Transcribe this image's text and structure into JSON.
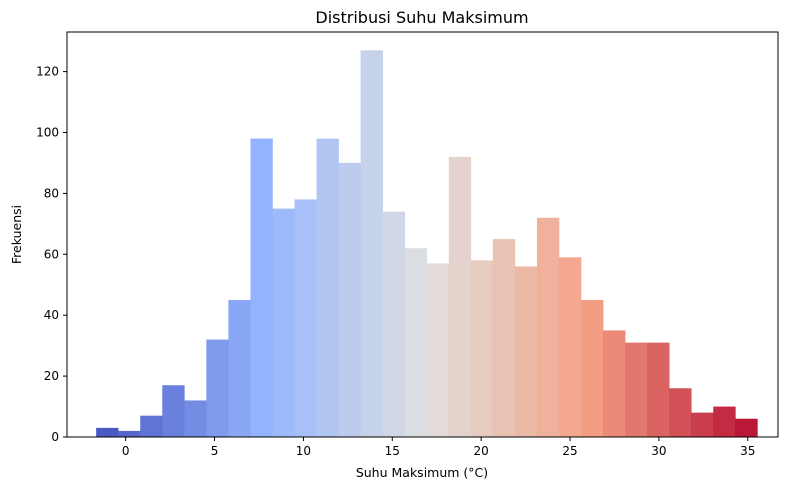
{
  "chart_data": {
    "type": "bar",
    "title": "Distribusi Suhu Maksimum",
    "xlabel": "Suhu Maksimum (°C)",
    "ylabel": "Frekuensi",
    "colormap": "coolwarm",
    "bin_width": 1.24,
    "bins": [
      {
        "x0": -1.66,
        "count": 3
      },
      {
        "x0": -0.42,
        "count": 2
      },
      {
        "x0": 0.82,
        "count": 7
      },
      {
        "x0": 2.06,
        "count": 17
      },
      {
        "x0": 3.3,
        "count": 12
      },
      {
        "x0": 4.54,
        "count": 32
      },
      {
        "x0": 5.78,
        "count": 45
      },
      {
        "x0": 7.02,
        "count": 98
      },
      {
        "x0": 8.26,
        "count": 75
      },
      {
        "x0": 9.5,
        "count": 78
      },
      {
        "x0": 10.74,
        "count": 98
      },
      {
        "x0": 11.98,
        "count": 90
      },
      {
        "x0": 13.22,
        "count": 127
      },
      {
        "x0": 14.46,
        "count": 74
      },
      {
        "x0": 15.7,
        "count": 62
      },
      {
        "x0": 16.94,
        "count": 57
      },
      {
        "x0": 18.18,
        "count": 92
      },
      {
        "x0": 19.42,
        "count": 58
      },
      {
        "x0": 20.66,
        "count": 65
      },
      {
        "x0": 21.9,
        "count": 56
      },
      {
        "x0": 23.14,
        "count": 72
      },
      {
        "x0": 24.38,
        "count": 59
      },
      {
        "x0": 25.62,
        "count": 45
      },
      {
        "x0": 26.86,
        "count": 35
      },
      {
        "x0": 28.1,
        "count": 31
      },
      {
        "x0": 29.34,
        "count": 31
      },
      {
        "x0": 30.58,
        "count": 16
      },
      {
        "x0": 31.82,
        "count": 8
      },
      {
        "x0": 33.06,
        "count": 10
      },
      {
        "x0": 34.3,
        "count": 6
      }
    ],
    "xlim": [
      -3.3,
      36.7
    ],
    "ylim": [
      0,
      133
    ],
    "xticks": [
      0,
      5,
      10,
      15,
      20,
      25,
      30,
      35
    ],
    "yticks": [
      0,
      20,
      40,
      60,
      80,
      100,
      120
    ],
    "grid": false
  }
}
